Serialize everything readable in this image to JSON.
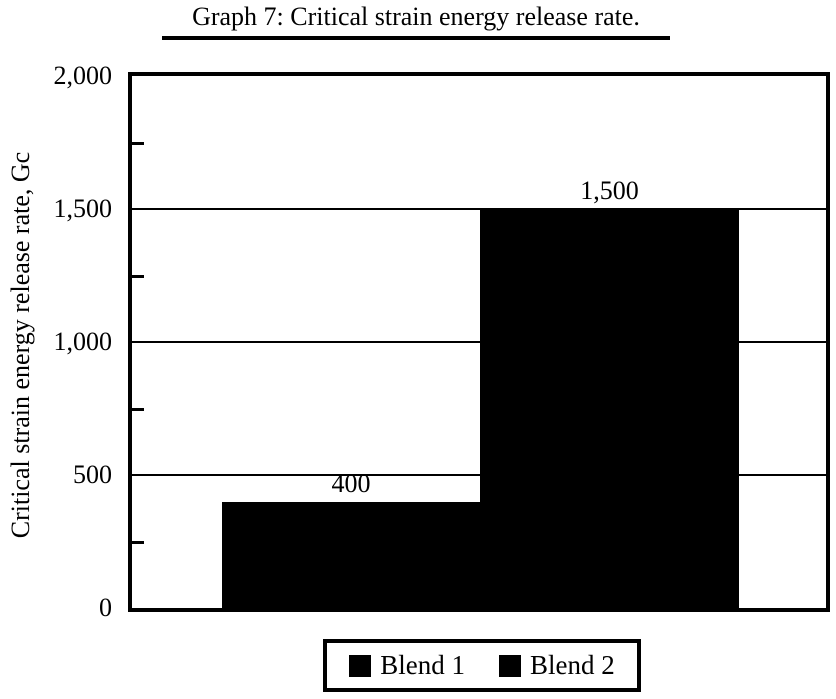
{
  "figure": {
    "background_color": "#ffffff",
    "ink_color": "#000000"
  },
  "chart_data": {
    "type": "bar",
    "title": "Graph 7: Critical strain energy release rate.",
    "xlabel": "",
    "ylabel": "Critical strain energy release rate, Gc",
    "ylim": [
      0,
      2000
    ],
    "grid": true,
    "categories": [
      "Blend 1",
      "Blend 2"
    ],
    "values": [
      400,
      1500
    ],
    "data_labels": [
      "400",
      "1,500"
    ],
    "bar_color": "#000000",
    "yticks": [
      {
        "value": 0,
        "label": "0"
      },
      {
        "value": 500,
        "label": "500"
      },
      {
        "value": 1000,
        "label": "1,000"
      },
      {
        "value": 1500,
        "label": "1,500"
      },
      {
        "value": 2000,
        "label": "2,000"
      }
    ],
    "gridline_values": [
      500,
      1000,
      1500
    ],
    "minor_tick_values": [
      250,
      750,
      1250,
      1750
    ],
    "legend": {
      "position": "bottom",
      "entries": [
        {
          "label": "Blend 1",
          "color": "#000000"
        },
        {
          "label": "Blend 2",
          "color": "#000000"
        }
      ]
    }
  }
}
